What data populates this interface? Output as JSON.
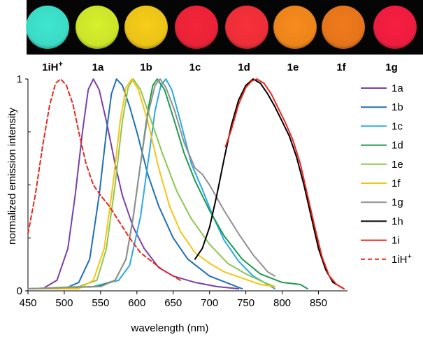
{
  "chart_data": {
    "type": "line",
    "xlabel": "wavelength (nm)",
    "ylabel": "normalized emission intensity",
    "xlim": [
      450,
      890
    ],
    "ylim": [
      0,
      1
    ],
    "x_ticks": [
      "450",
      "500",
      "550",
      "600",
      "650",
      "700",
      "750",
      "800",
      "850"
    ],
    "y_ticks": [
      "0",
      "1"
    ],
    "samples": [
      {
        "label": "1iH",
        "sup": "+",
        "color": "#3ee6cf"
      },
      {
        "label": "1a",
        "sup": "",
        "color": "#d6f02c"
      },
      {
        "label": "1b",
        "sup": "",
        "color": "#f7cd18"
      },
      {
        "label": "1c",
        "sup": "",
        "color": "#f5243a"
      },
      {
        "label": "1d",
        "sup": "",
        "color": "#f8303a"
      },
      {
        "label": "1e",
        "sup": "",
        "color": "#f88b1c"
      },
      {
        "label": "1f",
        "sup": "",
        "color": "#f07a1c"
      },
      {
        "label": "1g",
        "sup": "",
        "color": "#f81e42"
      }
    ],
    "series": [
      {
        "name": "1a",
        "color": "#7b3fa8",
        "dashed": false,
        "points": [
          [
            450,
            0.01
          ],
          [
            470,
            0.01
          ],
          [
            490,
            0.05
          ],
          [
            505,
            0.2
          ],
          [
            515,
            0.45
          ],
          [
            525,
            0.75
          ],
          [
            533,
            0.95
          ],
          [
            540,
            1.0
          ],
          [
            548,
            0.95
          ],
          [
            558,
            0.8
          ],
          [
            570,
            0.6
          ],
          [
            580,
            0.45
          ],
          [
            595,
            0.3
          ],
          [
            610,
            0.2
          ],
          [
            630,
            0.11
          ],
          [
            650,
            0.07
          ],
          [
            680,
            0.04
          ],
          [
            710,
            0.02
          ],
          [
            740,
            0.01
          ]
        ]
      },
      {
        "name": "1b",
        "color": "#1f6fb5",
        "dashed": false,
        "points": [
          [
            450,
            0.01
          ],
          [
            500,
            0.01
          ],
          [
            520,
            0.04
          ],
          [
            535,
            0.15
          ],
          [
            548,
            0.45
          ],
          [
            558,
            0.75
          ],
          [
            565,
            0.93
          ],
          [
            572,
            1.0
          ],
          [
            580,
            0.97
          ],
          [
            590,
            0.87
          ],
          [
            600,
            0.75
          ],
          [
            615,
            0.55
          ],
          [
            630,
            0.4
          ],
          [
            650,
            0.25
          ],
          [
            670,
            0.15
          ],
          [
            700,
            0.07
          ],
          [
            730,
            0.03
          ],
          [
            745,
            0.01
          ]
        ]
      },
      {
        "name": "1c",
        "color": "#2aa9e0",
        "dashed": false,
        "points": [
          [
            450,
            0.01
          ],
          [
            540,
            0.02
          ],
          [
            575,
            0.05
          ],
          [
            590,
            0.12
          ],
          [
            605,
            0.35
          ],
          [
            615,
            0.6
          ],
          [
            625,
            0.85
          ],
          [
            633,
            0.97
          ],
          [
            640,
            1.0
          ],
          [
            648,
            0.95
          ],
          [
            660,
            0.8
          ],
          [
            675,
            0.6
          ],
          [
            690,
            0.48
          ],
          [
            705,
            0.35
          ],
          [
            720,
            0.24
          ],
          [
            740,
            0.14
          ],
          [
            760,
            0.07
          ],
          [
            780,
            0.03
          ],
          [
            790,
            0.01
          ]
        ]
      },
      {
        "name": "1d",
        "color": "#1e9b50",
        "dashed": false,
        "points": [
          [
            450,
            0.01
          ],
          [
            545,
            0.02
          ],
          [
            570,
            0.05
          ],
          [
            585,
            0.15
          ],
          [
            595,
            0.35
          ],
          [
            605,
            0.6
          ],
          [
            615,
            0.85
          ],
          [
            622,
            0.97
          ],
          [
            628,
            1.0
          ],
          [
            638,
            0.95
          ],
          [
            650,
            0.82
          ],
          [
            665,
            0.65
          ],
          [
            680,
            0.52
          ],
          [
            700,
            0.38
          ],
          [
            720,
            0.26
          ],
          [
            745,
            0.15
          ],
          [
            770,
            0.08
          ],
          [
            800,
            0.04
          ],
          [
            825,
            0.03
          ],
          [
            835,
            0.01
          ]
        ]
      },
      {
        "name": "1e",
        "color": "#8cc850",
        "dashed": false,
        "points": [
          [
            450,
            0.01
          ],
          [
            520,
            0.02
          ],
          [
            545,
            0.05
          ],
          [
            558,
            0.2
          ],
          [
            570,
            0.5
          ],
          [
            580,
            0.8
          ],
          [
            588,
            0.96
          ],
          [
            595,
            1.0
          ],
          [
            605,
            0.95
          ],
          [
            618,
            0.82
          ],
          [
            635,
            0.65
          ],
          [
            655,
            0.47
          ],
          [
            675,
            0.34
          ],
          [
            700,
            0.22
          ],
          [
            725,
            0.13
          ],
          [
            750,
            0.08
          ],
          [
            775,
            0.04
          ],
          [
            790,
            0.02
          ]
        ]
      },
      {
        "name": "1f",
        "color": "#f4c518",
        "dashed": false,
        "points": [
          [
            450,
            0.01
          ],
          [
            520,
            0.01
          ],
          [
            540,
            0.05
          ],
          [
            555,
            0.2
          ],
          [
            567,
            0.5
          ],
          [
            577,
            0.8
          ],
          [
            585,
            0.96
          ],
          [
            593,
            1.0
          ],
          [
            602,
            0.95
          ],
          [
            615,
            0.8
          ],
          [
            630,
            0.58
          ],
          [
            645,
            0.4
          ],
          [
            660,
            0.28
          ],
          [
            680,
            0.18
          ],
          [
            700,
            0.13
          ],
          [
            720,
            0.09
          ],
          [
            745,
            0.06
          ],
          [
            770,
            0.03
          ],
          [
            790,
            0.02
          ]
        ]
      },
      {
        "name": "1g",
        "color": "#909090",
        "dashed": false,
        "points": [
          [
            450,
            0.01
          ],
          [
            550,
            0.02
          ],
          [
            570,
            0.05
          ],
          [
            585,
            0.15
          ],
          [
            595,
            0.35
          ],
          [
            605,
            0.6
          ],
          [
            615,
            0.83
          ],
          [
            625,
            0.97
          ],
          [
            632,
            1.0
          ],
          [
            640,
            0.96
          ],
          [
            652,
            0.85
          ],
          [
            665,
            0.7
          ],
          [
            680,
            0.58
          ],
          [
            690,
            0.55
          ],
          [
            700,
            0.5
          ],
          [
            720,
            0.38
          ],
          [
            740,
            0.27
          ],
          [
            760,
            0.17
          ],
          [
            780,
            0.09
          ],
          [
            790,
            0.07
          ]
        ]
      },
      {
        "name": "1h",
        "color": "#000000",
        "dashed": false,
        "points": [
          [
            680,
            0.15
          ],
          [
            690,
            0.2
          ],
          [
            700,
            0.3
          ],
          [
            710,
            0.45
          ],
          [
            720,
            0.62
          ],
          [
            730,
            0.78
          ],
          [
            740,
            0.9
          ],
          [
            750,
            0.97
          ],
          [
            760,
            1.0
          ],
          [
            770,
            0.98
          ],
          [
            780,
            0.93
          ],
          [
            790,
            0.87
          ],
          [
            800,
            0.8
          ],
          [
            810,
            0.73
          ],
          [
            820,
            0.63
          ],
          [
            830,
            0.5
          ],
          [
            840,
            0.35
          ],
          [
            850,
            0.2
          ],
          [
            860,
            0.1
          ],
          [
            870,
            0.04
          ],
          [
            880,
            0.02
          ],
          [
            885,
            0.01
          ]
        ]
      },
      {
        "name": "1i",
        "color": "#e8281f",
        "dashed": false,
        "points": [
          [
            722,
            0.68
          ],
          [
            730,
            0.76
          ],
          [
            740,
            0.88
          ],
          [
            750,
            0.96
          ],
          [
            758,
            0.99
          ],
          [
            765,
            1.0
          ],
          [
            775,
            0.98
          ],
          [
            785,
            0.93
          ],
          [
            795,
            0.86
          ],
          [
            805,
            0.79
          ],
          [
            815,
            0.71
          ],
          [
            825,
            0.6
          ],
          [
            835,
            0.45
          ],
          [
            845,
            0.3
          ],
          [
            855,
            0.16
          ],
          [
            865,
            0.07
          ],
          [
            875,
            0.03
          ],
          [
            885,
            0.01
          ]
        ]
      },
      {
        "name": "1iH",
        "sup": "+",
        "color": "#e8281f",
        "dashed": true,
        "points": [
          [
            450,
            0.27
          ],
          [
            460,
            0.45
          ],
          [
            470,
            0.68
          ],
          [
            480,
            0.88
          ],
          [
            488,
            0.98
          ],
          [
            495,
            1.0
          ],
          [
            503,
            0.97
          ],
          [
            512,
            0.88
          ],
          [
            520,
            0.75
          ],
          [
            530,
            0.6
          ],
          [
            540,
            0.5
          ],
          [
            550,
            0.45
          ],
          [
            562,
            0.4
          ],
          [
            575,
            0.33
          ],
          [
            590,
            0.25
          ],
          [
            605,
            0.18
          ],
          [
            620,
            0.14
          ],
          [
            635,
            0.1
          ],
          [
            650,
            0.07
          ],
          [
            660,
            0.05
          ]
        ]
      }
    ]
  }
}
